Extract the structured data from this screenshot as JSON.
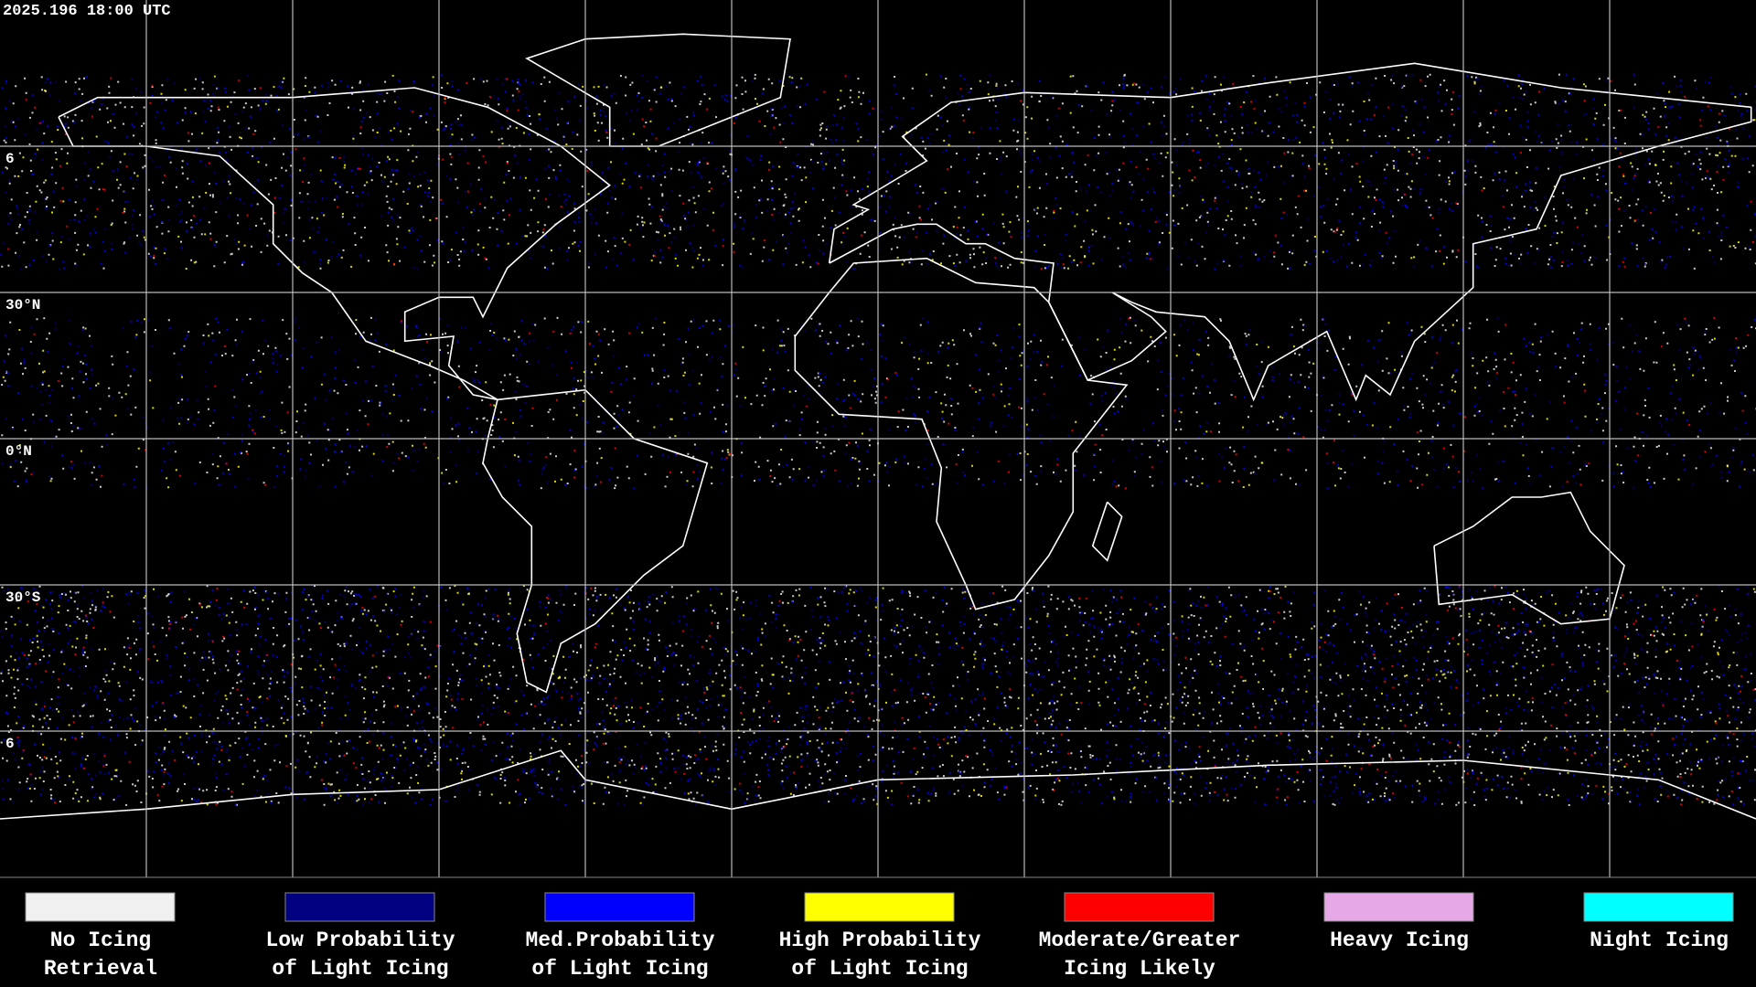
{
  "header": {
    "timestamp": "2025.196 18:00 UTC"
  },
  "latitude_labels": [
    "6",
    "30°N",
    "0°N",
    "30°S",
    "6"
  ],
  "legend": [
    {
      "color": "#f0f0f0",
      "lines": [
        "No Icing",
        "Retrieval"
      ]
    },
    {
      "color": "#000080",
      "lines": [
        "Low Probability",
        "of Light Icing"
      ]
    },
    {
      "color": "#0000ff",
      "lines": [
        "Med.Probability",
        "of Light Icing"
      ]
    },
    {
      "color": "#ffff00",
      "lines": [
        "High Probability",
        "of Light Icing"
      ]
    },
    {
      "color": "#ff0000",
      "lines": [
        "Moderate/Greater",
        "Icing Likely"
      ]
    },
    {
      "color": "#e6a8e6",
      "lines": [
        "Heavy Icing"
      ]
    },
    {
      "color": "#00ffff",
      "lines": [
        "Night Icing"
      ]
    }
  ]
}
